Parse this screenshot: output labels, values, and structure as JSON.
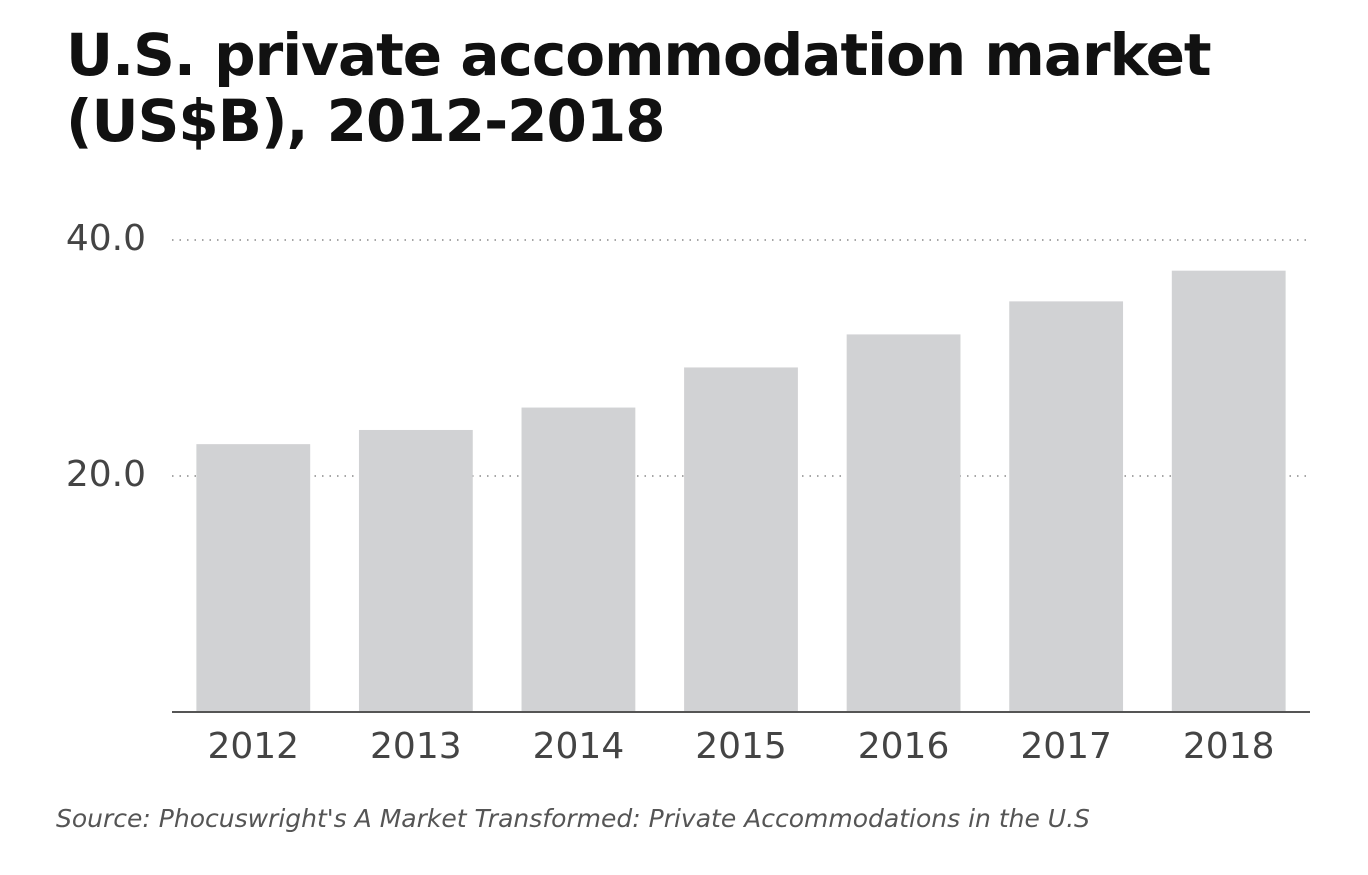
{
  "chart_data": {
    "type": "bar",
    "title": "U.S. private accommodation market (US$B), 2012-2018",
    "source": "Source: Phocuswright's A Market Transformed:  Private Accommodations in the U.S",
    "categories": [
      "2012",
      "2013",
      "2014",
      "2015",
      "2016",
      "2017",
      "2018"
    ],
    "values": [
      22.7,
      23.9,
      25.8,
      29.2,
      32.0,
      34.8,
      37.4
    ],
    "color": "#d1d2d4",
    "ylim": [
      0,
      40
    ],
    "yticks": [
      {
        "value": 20,
        "label": "20.0"
      },
      {
        "value": 40,
        "label": "40.0"
      }
    ],
    "grid": true
  }
}
